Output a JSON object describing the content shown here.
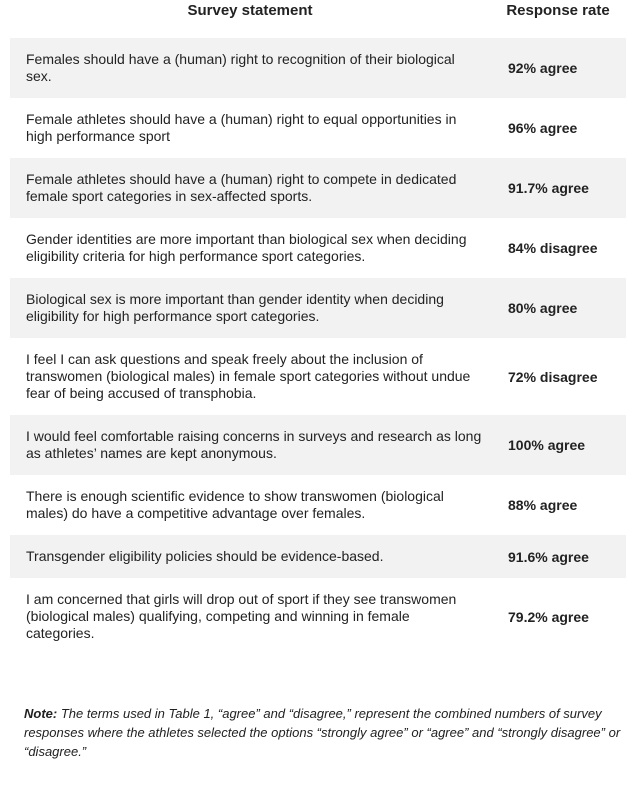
{
  "table": {
    "header": [
      "Survey statement",
      "Response rate"
    ],
    "rows": [
      [
        "Females should have a (human) right to recognition of their biological sex.",
        "92% agree"
      ],
      [
        "Female athletes should have a (human) right to equal opportunities in high performance sport",
        "96% agree"
      ],
      [
        "Female athletes should have a (human) right to compete in dedicated female sport categories in sex-affected sports.",
        "91.7% agree"
      ],
      [
        "Gender identities are more important than biological sex when deciding eligibility criteria for high performance sport categories.",
        "84% disagree"
      ],
      [
        "Biological sex is more important than gender identity when deciding eligibility for high performance sport categories.",
        "80% agree"
      ],
      [
        "I feel I can ask questions and speak freely about the inclusion of transwomen (biological males) in female sport categories without undue fear of being accused of transphobia.",
        "72% disagree"
      ],
      [
        "I would feel comfortable raising concerns in surveys and research as long as athletes’ names are kept anonymous.",
        "100% agree"
      ],
      [
        "There is enough scientific evidence to show transwomen (biological males) do have a competitive advantage over females.",
        "88% agree"
      ],
      [
        "Transgender eligibility policies should be evidence-based.",
        "91.6% agree"
      ],
      [
        "I am concerned that girls will drop out of sport if they see transwomen (biological males) qualifying, competing and winning in female categories.",
        "79.2% agree"
      ]
    ]
  },
  "note": {
    "label": "Note:",
    "text": "The terms used in Table 1, “agree” and “disagree,” represent the combined numbers of survey responses where the athletes selected the options “strongly agree” or “agree” and “strongly disagree” or “disagree.”"
  }
}
